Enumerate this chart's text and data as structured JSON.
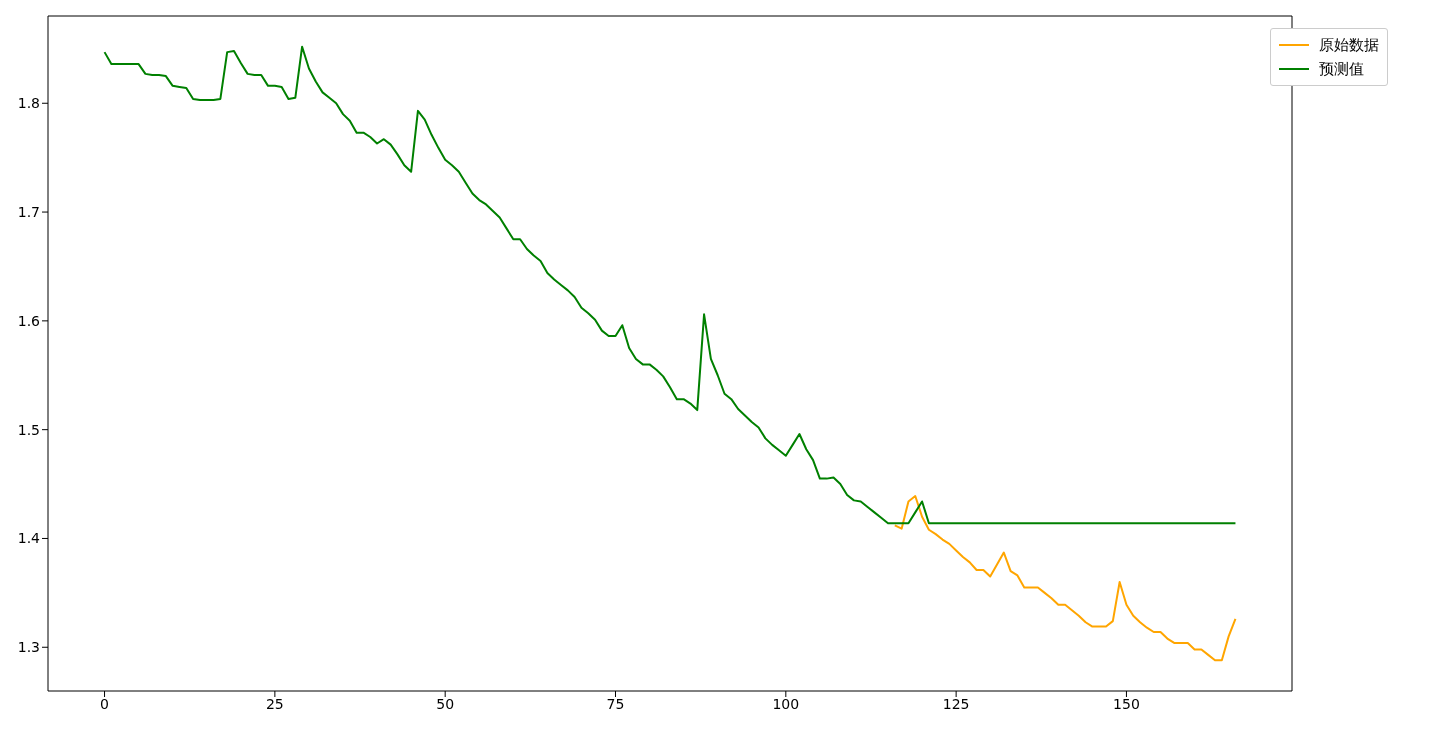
{
  "chart_data": {
    "type": "line",
    "x": [
      0,
      1,
      2,
      3,
      4,
      5,
      6,
      7,
      8,
      9,
      10,
      11,
      12,
      13,
      14,
      15,
      16,
      17,
      18,
      19,
      20,
      21,
      22,
      23,
      24,
      25,
      26,
      27,
      28,
      29,
      30,
      31,
      32,
      33,
      34,
      35,
      36,
      37,
      38,
      39,
      40,
      41,
      42,
      43,
      44,
      45,
      46,
      47,
      48,
      49,
      50,
      51,
      52,
      53,
      54,
      55,
      56,
      57,
      58,
      59,
      60,
      61,
      62,
      63,
      64,
      65,
      66,
      67,
      68,
      69,
      70,
      71,
      72,
      73,
      74,
      75,
      76,
      77,
      78,
      79,
      80,
      81,
      82,
      83,
      84,
      85,
      86,
      87,
      88,
      89,
      90,
      91,
      92,
      93,
      94,
      95,
      96,
      97,
      98,
      99,
      100,
      101,
      102,
      103,
      104,
      105,
      106,
      107,
      108,
      109,
      110,
      111,
      112,
      113,
      114,
      115,
      116,
      117,
      118,
      119,
      120,
      121,
      122,
      123,
      124,
      125,
      126,
      127,
      128,
      129,
      130,
      131,
      132,
      133,
      134,
      135,
      136,
      137,
      138,
      139,
      140,
      141,
      142,
      143,
      144,
      145,
      146,
      147,
      148,
      149,
      150,
      151,
      152,
      153,
      154,
      155,
      156,
      157,
      158,
      159,
      160,
      161,
      162,
      163,
      164,
      165,
      166
    ],
    "series": [
      {
        "name": "原始数据",
        "color": "#ffa500",
        "values": [
          null,
          null,
          null,
          null,
          null,
          null,
          null,
          null,
          null,
          null,
          null,
          null,
          null,
          null,
          null,
          null,
          null,
          null,
          null,
          null,
          null,
          null,
          null,
          null,
          null,
          null,
          null,
          null,
          null,
          null,
          null,
          null,
          null,
          null,
          null,
          null,
          null,
          null,
          null,
          null,
          null,
          null,
          null,
          null,
          null,
          null,
          null,
          null,
          null,
          null,
          null,
          null,
          null,
          null,
          null,
          null,
          null,
          null,
          null,
          null,
          null,
          null,
          null,
          null,
          null,
          null,
          null,
          null,
          null,
          null,
          null,
          null,
          null,
          null,
          null,
          null,
          null,
          null,
          null,
          null,
          null,
          null,
          null,
          null,
          null,
          null,
          null,
          null,
          null,
          null,
          null,
          null,
          null,
          null,
          null,
          null,
          null,
          null,
          null,
          null,
          null,
          null,
          null,
          null,
          null,
          null,
          null,
          null,
          null,
          null,
          null,
          null,
          null,
          null,
          null,
          null,
          1.412,
          1.409,
          1.434,
          1.439,
          1.42,
          1.408,
          1.404,
          1.399,
          1.395,
          1.389,
          1.383,
          1.378,
          1.371,
          1.371,
          1.365,
          1.376,
          1.387,
          1.37,
          1.366,
          1.355,
          1.355,
          1.355,
          1.35,
          1.345,
          1.339,
          1.339,
          1.334,
          1.329,
          1.323,
          1.319,
          1.319,
          1.319,
          1.324,
          1.36,
          1.339,
          1.329,
          1.323,
          1.318,
          1.314,
          1.314,
          1.308,
          1.304,
          1.304,
          1.304,
          1.298,
          1.298,
          1.293,
          1.288,
          1.288,
          1.31,
          1.326
        ]
      },
      {
        "name": "预测值",
        "color": "#008000",
        "values": [
          1.847,
          1.836,
          1.836,
          1.836,
          1.836,
          1.836,
          1.827,
          1.826,
          1.826,
          1.825,
          1.816,
          1.815,
          1.814,
          1.804,
          1.803,
          1.803,
          1.803,
          1.804,
          1.847,
          1.848,
          1.837,
          1.827,
          1.826,
          1.826,
          1.816,
          1.816,
          1.815,
          1.804,
          1.805,
          1.852,
          1.832,
          1.82,
          1.81,
          1.805,
          1.8,
          1.79,
          1.784,
          1.773,
          1.773,
          1.769,
          1.763,
          1.767,
          1.762,
          1.753,
          1.743,
          1.737,
          1.793,
          1.785,
          1.771,
          1.759,
          1.748,
          1.743,
          1.737,
          1.727,
          1.717,
          1.711,
          1.707,
          1.701,
          1.695,
          1.685,
          1.675,
          1.675,
          1.666,
          1.66,
          1.655,
          1.644,
          1.638,
          1.633,
          1.628,
          1.622,
          1.612,
          1.607,
          1.601,
          1.591,
          1.586,
          1.586,
          1.596,
          1.575,
          1.565,
          1.56,
          1.56,
          1.555,
          1.549,
          1.539,
          1.528,
          1.528,
          1.524,
          1.518,
          1.606,
          1.565,
          1.55,
          1.533,
          1.528,
          1.519,
          1.513,
          1.507,
          1.502,
          1.492,
          1.486,
          1.481,
          1.476,
          1.486,
          1.496,
          1.482,
          1.472,
          1.455,
          1.455,
          1.456,
          1.45,
          1.44,
          1.435,
          1.434,
          1.429,
          1.424,
          1.419,
          1.414,
          1.414,
          1.414,
          1.414,
          1.424,
          1.434,
          1.414,
          1.414,
          1.414,
          1.414,
          1.414,
          1.414,
          1.414,
          1.414,
          1.414,
          1.414,
          1.414,
          1.414,
          1.414,
          1.414,
          1.414,
          1.414,
          1.414,
          1.414,
          1.414,
          1.414,
          1.414,
          1.414,
          1.414,
          1.414,
          1.414,
          1.414,
          1.414,
          1.414,
          1.414,
          1.414,
          1.414,
          1.414,
          1.414,
          1.414,
          1.414,
          1.414,
          1.414,
          1.414,
          1.414,
          1.414,
          1.414,
          1.414,
          1.414,
          1.414,
          1.414,
          1.414
        ]
      }
    ],
    "xlim": [
      -8.3,
      174.3
    ],
    "xticks": [
      0,
      25,
      50,
      75,
      100,
      125,
      150
    ],
    "ylim": [
      1.2598,
      1.8802
    ],
    "yticks": [
      1.3,
      1.4,
      1.5,
      1.6,
      1.7,
      1.8
    ],
    "grid": false,
    "legend": "top right",
    "marker": "none",
    "line_style": "solid"
  }
}
